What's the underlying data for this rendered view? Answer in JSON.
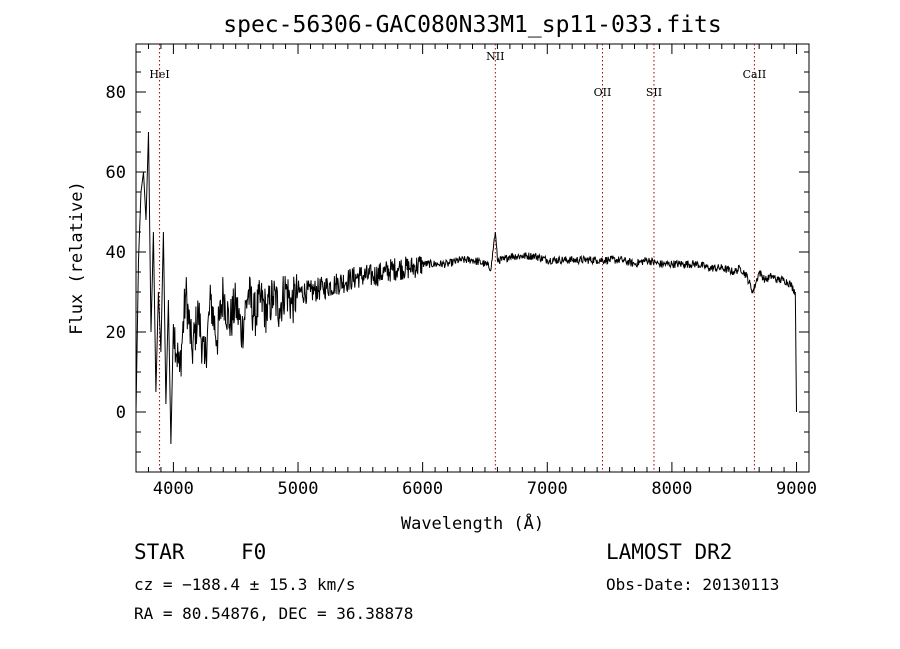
{
  "chart_data": {
    "type": "line",
    "title": "spec-56306-GAC080N33M1_sp11-033.fits",
    "xlabel": "Wavelength (Å)",
    "ylabel": "Flux (relative)",
    "xlim": [
      3700,
      9100
    ],
    "ylim": [
      -15,
      92
    ],
    "x_ticks": [
      4000,
      5000,
      6000,
      7000,
      8000,
      9000
    ],
    "y_ticks": [
      0,
      20,
      40,
      60,
      80
    ],
    "grid": false,
    "line_color": "#000000",
    "marker_color": "#b00000",
    "lines": [
      {
        "label": "HeI",
        "x": 3889
      },
      {
        "label": "NII",
        "x": 6583
      },
      {
        "label": "OII",
        "x": 7443
      },
      {
        "label": "SII",
        "x": 7856
      },
      {
        "label": "CaII",
        "x": 8662
      }
    ],
    "series": [
      {
        "x": [
          3700,
          3720,
          3740,
          3760,
          3780,
          3800,
          3820,
          3840,
          3860,
          3880,
          3900,
          3920,
          3940,
          3960,
          3980,
          4000,
          4050,
          4100,
          4150,
          4200,
          4250,
          4300,
          4350,
          4400,
          4450,
          4500,
          4550,
          4600,
          4650,
          4700,
          4750,
          4800,
          4850,
          4900,
          4950,
          5000,
          5100,
          5200,
          5300,
          5400,
          5500,
          5600,
          5700,
          5800,
          5900,
          6000,
          6100,
          6200,
          6300,
          6400,
          6500,
          6550,
          6570,
          6583,
          6600,
          6650,
          6700,
          6800,
          6900,
          7000,
          7100,
          7200,
          7300,
          7400,
          7500,
          7600,
          7700,
          7800,
          7900,
          8000,
          8100,
          8200,
          8300,
          8400,
          8500,
          8550,
          8600,
          8650,
          8700,
          8750,
          8800,
          8850,
          8900,
          8950,
          8990,
          9000
        ],
        "y": [
          0,
          38,
          55,
          60,
          48,
          70,
          20,
          45,
          5,
          30,
          15,
          45,
          2,
          28,
          -8,
          22,
          10,
          30,
          15,
          25,
          12,
          28,
          18,
          30,
          22,
          27,
          20,
          30,
          24,
          28,
          25,
          29,
          26,
          31,
          27,
          30,
          30,
          31,
          32,
          33,
          34,
          34,
          35,
          36,
          36,
          37,
          37,
          37,
          38,
          38,
          37,
          36,
          42,
          45,
          38,
          38,
          39,
          39,
          39,
          38,
          38,
          38,
          38,
          38,
          38,
          38,
          37,
          38,
          37,
          37,
          37,
          37,
          36,
          36,
          35,
          36,
          34,
          30,
          35,
          33,
          34,
          33,
          33,
          32,
          30,
          0
        ]
      }
    ]
  },
  "info": {
    "object_class": "STAR",
    "subclass": "F0",
    "survey": "LAMOST DR2",
    "cz": "cz = −188.4 ± 15.3 km/s",
    "obs_date": "Obs-Date: 20130113",
    "coords": "RA =  80.54876, DEC =  36.38878"
  }
}
